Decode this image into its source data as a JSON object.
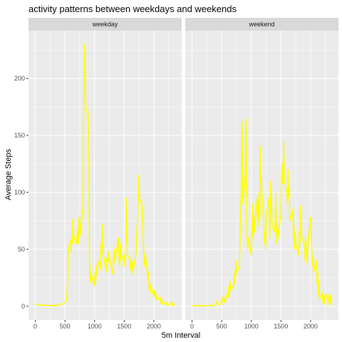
{
  "title": "activity patterns between weekdays and weekends",
  "xlabel": "5m Interval",
  "ylabel": "Average Steps",
  "colors": {
    "line": "#FFFF00",
    "panel_bg": "#EBEBEB",
    "strip_bg": "#D9D9D9",
    "grid_major": "#FFFFFF"
  },
  "x_ticks": [
    "0",
    "500",
    "1000",
    "1500",
    "2000"
  ],
  "y_ticks": [
    "0",
    "50",
    "100",
    "150",
    "200"
  ],
  "chart_data": {
    "type": "line",
    "title": "activity patterns between weekdays and weekends",
    "xlabel": "5m Interval",
    "ylabel": "Average Steps",
    "xlim": [
      -115,
      2470
    ],
    "ylim": [
      -12,
      242
    ],
    "grid": true,
    "facets": [
      "weekday",
      "weekend"
    ],
    "series": [
      {
        "name": "weekday",
        "points": [
          [
            0,
            2.3
          ],
          [
            50,
            0.9
          ],
          [
            100,
            1.2
          ],
          [
            150,
            0.6
          ],
          [
            200,
            1.0
          ],
          [
            250,
            0.4
          ],
          [
            300,
            0.8
          ],
          [
            350,
            0.3
          ],
          [
            400,
            1.5
          ],
          [
            450,
            2.0
          ],
          [
            500,
            2.5
          ],
          [
            530,
            6
          ],
          [
            550,
            30
          ],
          [
            555,
            50
          ],
          [
            600,
            58
          ],
          [
            605,
            48
          ],
          [
            615,
            60
          ],
          [
            625,
            76
          ],
          [
            630,
            55
          ],
          [
            645,
            62
          ],
          [
            700,
            55
          ],
          [
            705,
            65
          ],
          [
            715,
            68
          ],
          [
            725,
            55
          ],
          [
            735,
            75
          ],
          [
            745,
            80
          ],
          [
            750,
            72
          ],
          [
            755,
            62
          ],
          [
            800,
            85
          ],
          [
            805,
            82
          ],
          [
            810,
            140
          ],
          [
            815,
            165
          ],
          [
            820,
            200
          ],
          [
            825,
            218
          ],
          [
            830,
            230
          ],
          [
            835,
            215
          ],
          [
            840,
            205
          ],
          [
            845,
            190
          ],
          [
            850,
            178
          ],
          [
            855,
            172
          ],
          [
            900,
            168
          ],
          [
            905,
            120
          ],
          [
            910,
            60
          ],
          [
            915,
            40
          ],
          [
            920,
            25
          ],
          [
            925,
            35
          ],
          [
            930,
            20
          ],
          [
            935,
            30
          ],
          [
            940,
            22
          ],
          [
            945,
            28
          ],
          [
            1000,
            18
          ],
          [
            1010,
            30
          ],
          [
            1020,
            22
          ],
          [
            1030,
            35
          ],
          [
            1040,
            28
          ],
          [
            1050,
            40
          ],
          [
            1100,
            32
          ],
          [
            1110,
            55
          ],
          [
            1120,
            45
          ],
          [
            1130,
            72
          ],
          [
            1135,
            60
          ],
          [
            1140,
            55
          ],
          [
            1150,
            45
          ],
          [
            1200,
            30
          ],
          [
            1210,
            42
          ],
          [
            1220,
            38
          ],
          [
            1230,
            48
          ],
          [
            1240,
            40
          ],
          [
            1250,
            42
          ],
          [
            1300,
            30
          ],
          [
            1310,
            28
          ],
          [
            1320,
            45
          ],
          [
            1330,
            38
          ],
          [
            1340,
            50
          ],
          [
            1350,
            42
          ],
          [
            1400,
            60
          ],
          [
            1410,
            48
          ],
          [
            1420,
            35
          ],
          [
            1430,
            40
          ],
          [
            1440,
            55
          ],
          [
            1450,
            40
          ],
          [
            1500,
            45
          ],
          [
            1510,
            35
          ],
          [
            1520,
            52
          ],
          [
            1530,
            60
          ],
          [
            1540,
            95
          ],
          [
            1545,
            75
          ],
          [
            1550,
            55
          ],
          [
            1555,
            45
          ],
          [
            1600,
            40
          ],
          [
            1610,
            32
          ],
          [
            1620,
            42
          ],
          [
            1630,
            28
          ],
          [
            1640,
            38
          ],
          [
            1650,
            32
          ],
          [
            1700,
            45
          ],
          [
            1705,
            55
          ],
          [
            1710,
            62
          ],
          [
            1720,
            70
          ],
          [
            1730,
            80
          ],
          [
            1740,
            96
          ],
          [
            1745,
            115
          ],
          [
            1750,
            108
          ],
          [
            1755,
            95
          ],
          [
            1800,
            90
          ],
          [
            1805,
            85
          ],
          [
            1810,
            80
          ],
          [
            1815,
            70
          ],
          [
            1820,
            60
          ],
          [
            1830,
            48
          ],
          [
            1840,
            40
          ],
          [
            1850,
            35
          ],
          [
            1855,
            45
          ],
          [
            1900,
            25
          ],
          [
            1910,
            30
          ],
          [
            1920,
            15
          ],
          [
            1930,
            20
          ],
          [
            1940,
            12
          ],
          [
            1950,
            18
          ],
          [
            2000,
            8
          ],
          [
            2010,
            14
          ],
          [
            2020,
            10
          ],
          [
            2030,
            12
          ],
          [
            2040,
            6
          ],
          [
            2050,
            9
          ],
          [
            2100,
            5
          ],
          [
            2110,
            8
          ],
          [
            2120,
            3
          ],
          [
            2130,
            6
          ],
          [
            2140,
            2
          ],
          [
            2150,
            4
          ],
          [
            2200,
            1.5
          ],
          [
            2210,
            3
          ],
          [
            2220,
            1.0
          ],
          [
            2230,
            2.5
          ],
          [
            2240,
            0.8
          ],
          [
            2250,
            1.2
          ],
          [
            2300,
            3.5
          ],
          [
            2310,
            1.0
          ],
          [
            2320,
            2.5
          ],
          [
            2330,
            0.5
          ],
          [
            2340,
            1.0
          ],
          [
            2350,
            1.3
          ],
          [
            2355,
            1.0
          ]
        ]
      },
      {
        "name": "weekend",
        "points": [
          [
            0,
            0.5
          ],
          [
            50,
            0.2
          ],
          [
            100,
            0.8
          ],
          [
            150,
            0.3
          ],
          [
            200,
            0.5
          ],
          [
            250,
            0.2
          ],
          [
            300,
            0.9
          ],
          [
            350,
            0.4
          ],
          [
            400,
            2.0
          ],
          [
            420,
            5
          ],
          [
            440,
            1.0
          ],
          [
            500,
            2.5
          ],
          [
            510,
            7
          ],
          [
            520,
            4
          ],
          [
            530,
            9
          ],
          [
            550,
            3
          ],
          [
            600,
            12
          ],
          [
            610,
            8
          ],
          [
            620,
            18
          ],
          [
            630,
            10
          ],
          [
            640,
            22
          ],
          [
            650,
            14
          ],
          [
            700,
            18
          ],
          [
            710,
            28
          ],
          [
            720,
            20
          ],
          [
            730,
            32
          ],
          [
            740,
            28
          ],
          [
            745,
            40
          ],
          [
            750,
            30
          ],
          [
            800,
            35
          ],
          [
            810,
            60
          ],
          [
            820,
            80
          ],
          [
            830,
            100
          ],
          [
            835,
            125
          ],
          [
            840,
            155
          ],
          [
            845,
            162
          ],
          [
            850,
            130
          ],
          [
            855,
            90
          ],
          [
            900,
            115
          ],
          [
            905,
            140
          ],
          [
            910,
            165
          ],
          [
            915,
            145
          ],
          [
            920,
            105
          ],
          [
            925,
            70
          ],
          [
            930,
            55
          ],
          [
            940,
            50
          ],
          [
            950,
            60
          ],
          [
            1000,
            45
          ],
          [
            1010,
            70
          ],
          [
            1020,
            90
          ],
          [
            1030,
            60
          ],
          [
            1040,
            80
          ],
          [
            1050,
            65
          ],
          [
            1100,
            95
          ],
          [
            1110,
            70
          ],
          [
            1120,
            85
          ],
          [
            1130,
            100
          ],
          [
            1140,
            75
          ],
          [
            1150,
            140
          ],
          [
            1155,
            120
          ],
          [
            1200,
            80
          ],
          [
            1210,
            75
          ],
          [
            1220,
            55
          ],
          [
            1230,
            65
          ],
          [
            1240,
            50
          ],
          [
            1250,
            80
          ],
          [
            1300,
            95
          ],
          [
            1310,
            60
          ],
          [
            1320,
            90
          ],
          [
            1330,
            110
          ],
          [
            1340,
            85
          ],
          [
            1350,
            70
          ],
          [
            1400,
            65
          ],
          [
            1410,
            100
          ],
          [
            1420,
            75
          ],
          [
            1430,
            55
          ],
          [
            1440,
            70
          ],
          [
            1450,
            60
          ],
          [
            1500,
            80
          ],
          [
            1510,
            115
          ],
          [
            1520,
            125
          ],
          [
            1530,
            108
          ],
          [
            1540,
            128
          ],
          [
            1545,
            145
          ],
          [
            1550,
            130
          ],
          [
            1555,
            110
          ],
          [
            1600,
            100
          ],
          [
            1610,
            90
          ],
          [
            1620,
            120
          ],
          [
            1630,
            95
          ],
          [
            1640,
            105
          ],
          [
            1650,
            75
          ],
          [
            1700,
            85
          ],
          [
            1710,
            60
          ],
          [
            1720,
            70
          ],
          [
            1730,
            50
          ],
          [
            1740,
            65
          ],
          [
            1750,
            55
          ],
          [
            1800,
            45
          ],
          [
            1810,
            65
          ],
          [
            1820,
            55
          ],
          [
            1830,
            88
          ],
          [
            1840,
            70
          ],
          [
            1850,
            60
          ],
          [
            1900,
            55
          ],
          [
            1910,
            40
          ],
          [
            1920,
            60
          ],
          [
            1930,
            45
          ],
          [
            1940,
            38
          ],
          [
            1950,
            52
          ],
          [
            2000,
            78
          ],
          [
            2010,
            60
          ],
          [
            2020,
            50
          ],
          [
            2030,
            35
          ],
          [
            2040,
            45
          ],
          [
            2050,
            30
          ],
          [
            2100,
            40
          ],
          [
            2110,
            20
          ],
          [
            2120,
            30
          ],
          [
            2130,
            10
          ],
          [
            2140,
            22
          ],
          [
            2150,
            6
          ],
          [
            2200,
            12
          ],
          [
            2210,
            3
          ],
          [
            2220,
            8
          ],
          [
            2230,
            2
          ],
          [
            2240,
            5
          ],
          [
            2250,
            11
          ],
          [
            2300,
            4
          ],
          [
            2310,
            10
          ],
          [
            2320,
            1
          ],
          [
            2330,
            6
          ],
          [
            2340,
            10
          ],
          [
            2350,
            2
          ],
          [
            2355,
            0.5
          ]
        ]
      }
    ]
  }
}
